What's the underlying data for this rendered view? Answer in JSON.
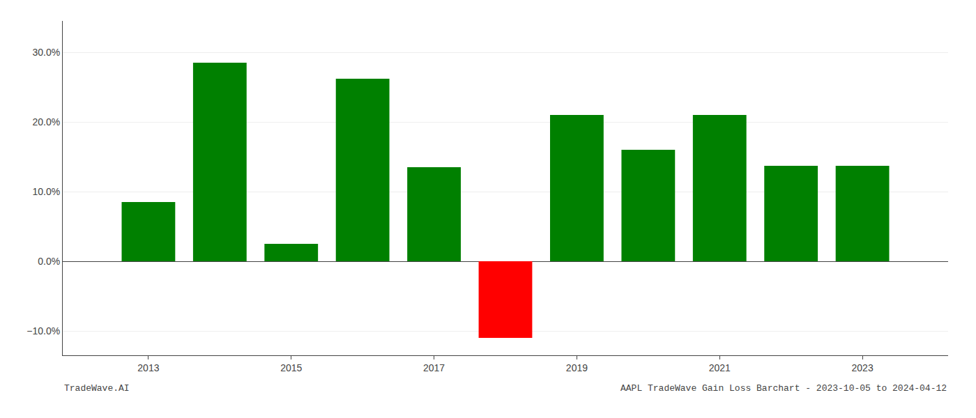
{
  "chart_data": {
    "type": "bar",
    "title": "AAPL TradeWave Gain Loss Barchart - 2023-10-05 to 2024-04-12",
    "annotations": [
      "TradeWave.AI"
    ],
    "x": [
      2013,
      2014,
      2015,
      2016,
      2017,
      2018,
      2019,
      2020,
      2021,
      2022,
      2023
    ],
    "values": [
      0.085,
      0.285,
      0.025,
      0.262,
      0.135,
      -0.11,
      0.21,
      0.16,
      0.21,
      0.137,
      0.137
    ],
    "colors": [
      "#008000",
      "#008000",
      "#008000",
      "#008000",
      "#008000",
      "#ff0000",
      "#008000",
      "#008000",
      "#008000",
      "#008000",
      "#008000"
    ],
    "xlim": [
      2011.8,
      2024.2
    ],
    "xticks": [
      2013,
      2015,
      2017,
      2019,
      2021,
      2023
    ],
    "ylim": [
      -0.135,
      0.345
    ],
    "yticks": [
      {
        "value": -0.1,
        "label": "−10.0%"
      },
      {
        "value": 0.0,
        "label": "0.0%"
      },
      {
        "value": 0.1,
        "label": "10.0%"
      },
      {
        "value": 0.2,
        "label": "20.0%"
      },
      {
        "value": 0.3,
        "label": "30.0%"
      }
    ],
    "grid": true
  }
}
